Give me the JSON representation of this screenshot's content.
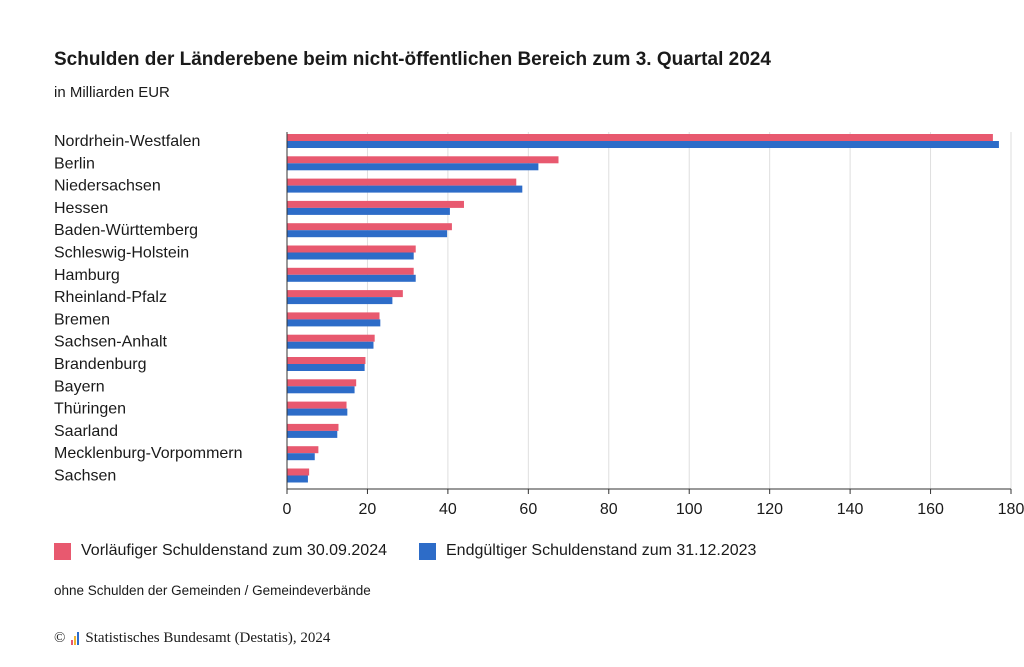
{
  "chart_data": {
    "type": "bar",
    "orientation": "horizontal",
    "title": "Schulden der Länderebene beim nicht-öffentlichen Bereich zum 3. Quartal 2024",
    "subtitle": "in Milliarden EUR",
    "categories": [
      "Nordrhein-Westfalen",
      "Berlin",
      "Niedersachsen",
      "Hessen",
      "Baden-Württemberg",
      "Schleswig-Holstein",
      "Hamburg",
      "Rheinland-Pfalz",
      "Bremen",
      "Sachsen-Anhalt",
      "Brandenburg",
      "Bayern",
      "Thüringen",
      "Saarland",
      "Mecklenburg-Vorpommern",
      "Sachsen"
    ],
    "series": [
      {
        "name": "Vorläufiger Schuldenstand zum 30.09.2024",
        "color": "#e8596f",
        "values": [
          175.5,
          67.5,
          57,
          44,
          41,
          32,
          31.5,
          28.8,
          23,
          21.8,
          19.5,
          17.2,
          14.8,
          12.8,
          7.8,
          5.5
        ]
      },
      {
        "name": "Endgültiger Schuldenstand zum 31.12.2023",
        "color": "#2d6cc8",
        "values": [
          177,
          62.5,
          58.5,
          40.5,
          39.8,
          31.5,
          32,
          26.2,
          23.2,
          21.5,
          19.3,
          16.8,
          15,
          12.5,
          6.9,
          5.2
        ]
      }
    ],
    "xlim": [
      0,
      180
    ],
    "xticks": [
      0,
      20,
      40,
      60,
      80,
      100,
      120,
      140,
      160,
      180
    ],
    "grid": true,
    "legend_position": "bottom"
  },
  "note": "ohne Schulden der Gemeinden / Gemeindeverbände",
  "credit": {
    "symbol": "©",
    "text": "Statistisches Bundesamt (Destatis), 2024"
  },
  "logo_colors": [
    "#e8596f",
    "#f2b632",
    "#2d6cc8"
  ]
}
